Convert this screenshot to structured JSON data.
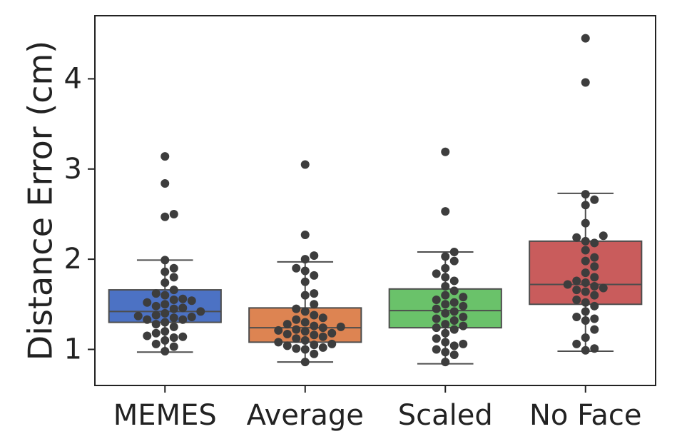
{
  "chart_data": {
    "type": "box",
    "title": "",
    "xlabel": "",
    "ylabel": "Distance Error (cm)",
    "ylim": [
      0.6,
      4.7
    ],
    "yticks": [
      1,
      2,
      3,
      4
    ],
    "ytick_labels": [
      "1",
      "2",
      "3",
      "4"
    ],
    "categories": [
      "MEMES",
      "Average",
      "Scaled",
      "No Face"
    ],
    "colors": [
      "#4c72c4",
      "#dd8452",
      "#6ac26a",
      "#c95c5c"
    ],
    "point_color": "#3d3d3d",
    "line_color": "#4d4d4d",
    "grid": false,
    "series": [
      {
        "category": "MEMES",
        "q1": 1.3,
        "median": 1.42,
        "q3": 1.66,
        "whisker_low": 0.97,
        "whisker_high": 1.99,
        "points": [
          0.98,
          1.03,
          1.06,
          1.1,
          1.13,
          1.14,
          1.15,
          1.18,
          1.2,
          1.25,
          1.28,
          1.3,
          1.33,
          1.33,
          1.35,
          1.36,
          1.37,
          1.38,
          1.4,
          1.42,
          1.45,
          1.46,
          1.48,
          1.5,
          1.52,
          1.54,
          1.55,
          1.56,
          1.6,
          1.62,
          1.66,
          1.74,
          1.8,
          1.86,
          1.9,
          1.99,
          2.47,
          2.5,
          2.84,
          3.14
        ]
      },
      {
        "category": "Average",
        "q1": 1.08,
        "median": 1.24,
        "q3": 1.46,
        "whisker_low": 0.86,
        "whisker_high": 1.97,
        "points": [
          0.86,
          0.95,
          1.0,
          1.01,
          1.02,
          1.04,
          1.05,
          1.06,
          1.08,
          1.1,
          1.12,
          1.14,
          1.16,
          1.17,
          1.18,
          1.2,
          1.21,
          1.22,
          1.24,
          1.25,
          1.26,
          1.28,
          1.3,
          1.33,
          1.35,
          1.38,
          1.42,
          1.45,
          1.5,
          1.6,
          1.62,
          1.75,
          1.82,
          1.87,
          1.9,
          2.0,
          2.04,
          2.27,
          3.05
        ]
      },
      {
        "category": "Scaled",
        "q1": 1.24,
        "median": 1.43,
        "q3": 1.67,
        "whisker_low": 0.84,
        "whisker_high": 2.08,
        "points": [
          0.86,
          0.94,
          0.97,
          1.0,
          1.04,
          1.06,
          1.08,
          1.12,
          1.18,
          1.22,
          1.24,
          1.26,
          1.28,
          1.32,
          1.34,
          1.36,
          1.4,
          1.42,
          1.45,
          1.48,
          1.5,
          1.52,
          1.55,
          1.58,
          1.6,
          1.65,
          1.7,
          1.76,
          1.8,
          1.84,
          1.9,
          1.98,
          2.03,
          2.08,
          2.53,
          3.19
        ]
      },
      {
        "category": "No Face",
        "q1": 1.5,
        "median": 1.72,
        "q3": 2.2,
        "whisker_low": 0.98,
        "whisker_high": 2.73,
        "points": [
          0.99,
          1.01,
          1.06,
          1.13,
          1.22,
          1.32,
          1.34,
          1.36,
          1.42,
          1.48,
          1.52,
          1.55,
          1.6,
          1.64,
          1.66,
          1.68,
          1.7,
          1.72,
          1.74,
          1.76,
          1.8,
          1.85,
          1.92,
          1.98,
          2.02,
          2.1,
          2.18,
          2.2,
          2.24,
          2.26,
          2.4,
          2.6,
          2.66,
          2.72,
          3.96,
          4.45
        ]
      }
    ]
  }
}
